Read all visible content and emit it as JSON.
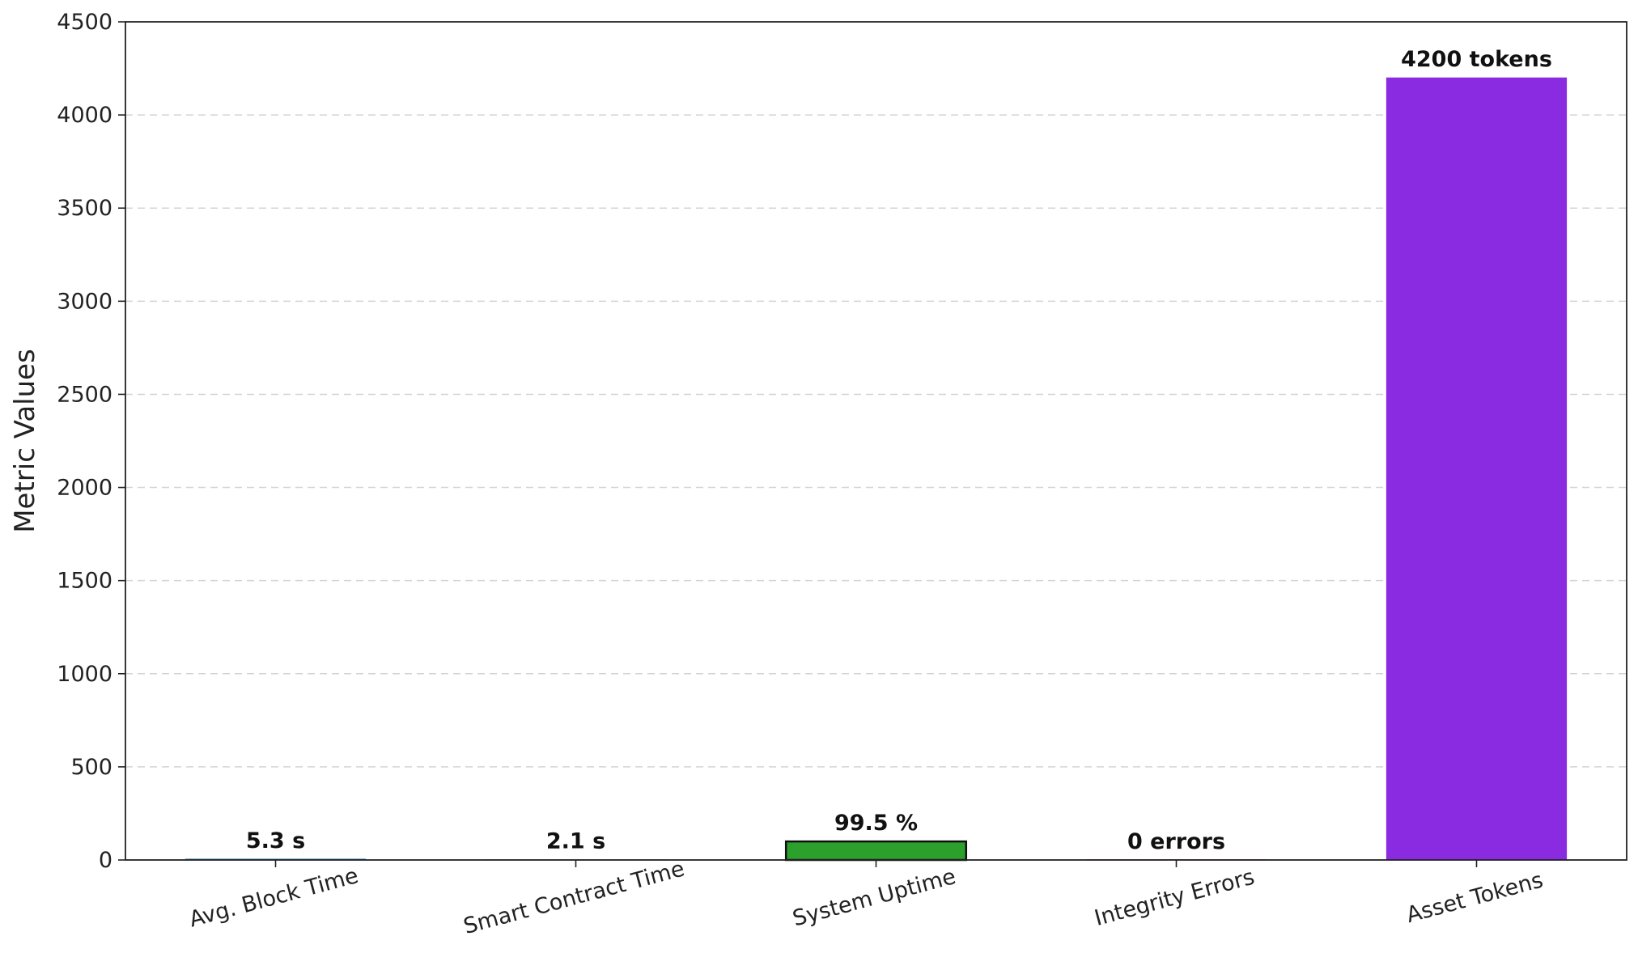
{
  "chart_data": {
    "type": "bar",
    "title": "",
    "xlabel": "",
    "ylabel": "Metric Values",
    "ylim": [
      0,
      4500
    ],
    "yticks": [
      0,
      500,
      1000,
      1500,
      2000,
      2500,
      3000,
      3500,
      4000,
      4500
    ],
    "grid": "horizontal dashed",
    "categories": [
      "Avg. Block Time",
      "Smart Contract Time",
      "System Uptime",
      "Integrity Errors",
      "Asset Tokens"
    ],
    "values": [
      5.3,
      2.1,
      99.5,
      0,
      4200
    ],
    "data_labels": [
      "5.3 s",
      "2.1 s",
      "99.5 %",
      "0 errors",
      "4200 tokens"
    ],
    "colors": [
      "#1f77b4",
      "#ff7f0e",
      "#2ca02c",
      "#d62728",
      "#8a2be2"
    ],
    "edge_colors": [
      "#1f77b4",
      "#ff7f0e",
      "#111111",
      "#d62728",
      "#8a2be2"
    ]
  }
}
